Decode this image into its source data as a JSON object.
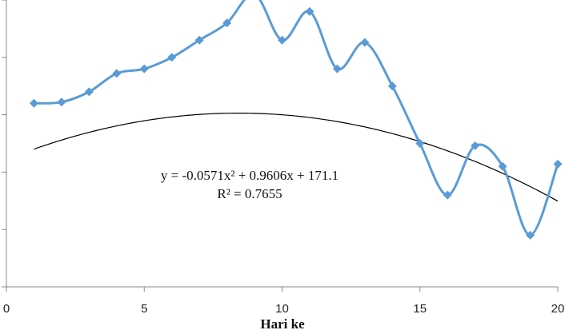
{
  "chart_data": {
    "type": "line",
    "title": "",
    "xlabel": "Hari ke",
    "ylabel": "",
    "xlim": [
      0,
      20
    ],
    "ylim": [
      160,
      185
    ],
    "x_ticks": [
      "0",
      "5",
      "10",
      "15",
      "20"
    ],
    "y_gridlines": false,
    "y_tick_labels_visible": false,
    "series": [
      {
        "color": "#5B9BD5",
        "marker": "diamond",
        "smoothed": true,
        "x": [
          1,
          2,
          3,
          4,
          5,
          6,
          7,
          8,
          9,
          10,
          11,
          12,
          13,
          14,
          15,
          16,
          17,
          18,
          19,
          20
        ],
        "values": [
          176.0,
          176.1,
          177.0,
          178.6,
          179.0,
          180.0,
          181.5,
          183.0,
          185.5,
          181.5,
          184.0,
          179.0,
          181.3,
          177.5,
          172.5,
          168.0,
          172.3,
          170.5,
          164.5,
          170.7
        ]
      },
      {
        "type": "trendline",
        "kind": "polynomial",
        "order": 2,
        "color": "#000000",
        "coefficients": [
          -0.0571,
          0.9606,
          171.1
        ]
      }
    ],
    "annotations": [
      "y = -0.0571x² + 0.9606x + 171.1",
      "R² = 0.7655"
    ]
  }
}
